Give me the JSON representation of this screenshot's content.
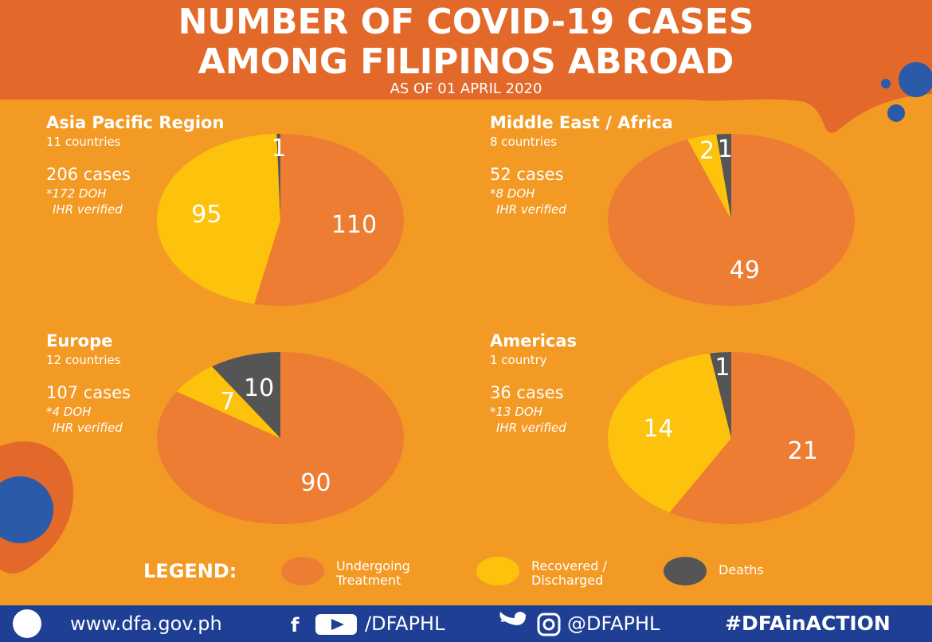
{
  "header": {
    "title_lines": [
      "NUMBER OF COVID-19 CASES",
      "AMONG FILIPINOS ABROAD"
    ],
    "subtitle": "AS OF 01 APRIL 2020"
  },
  "chart_data": [
    {
      "type": "pie",
      "title": "Asia Pacific Region",
      "countries": "11 countries",
      "cases": "206 cases",
      "note_lines": [
        "*172 DOH",
        "IHR verified"
      ],
      "values": [
        110,
        95,
        1
      ]
    },
    {
      "type": "pie",
      "title": "Middle East / Africa",
      "countries": "8 countries",
      "cases": "52 cases",
      "note_lines": [
        "*8 DOH",
        "IHR verified"
      ],
      "values": [
        49,
        2,
        1
      ]
    },
    {
      "type": "pie",
      "title": "Europe",
      "countries": "12 countries",
      "cases": "107 cases",
      "note_lines": [
        "*4 DOH",
        "IHR verified"
      ],
      "values": [
        90,
        7,
        10
      ]
    },
    {
      "type": "pie",
      "title": "Americas",
      "countries": "1 country",
      "cases": "36 cases",
      "note_lines": [
        "*13 DOH",
        "IHR verified"
      ],
      "values": [
        21,
        14,
        1
      ]
    }
  ],
  "legend": {
    "title": "LEGEND:",
    "items": [
      {
        "label": "Undergoing Treatment",
        "color": "#ec7d33"
      },
      {
        "label": "Recovered / Discharged",
        "color": "#fdc20c"
      },
      {
        "label": "Deaths",
        "color": "#555555"
      }
    ]
  },
  "footer": {
    "website": "www.dfa.gov.ph",
    "handle_1": "/DFAPHL",
    "handle_2": "@DFAPHL",
    "hashtag": "#DFAinACTION"
  }
}
